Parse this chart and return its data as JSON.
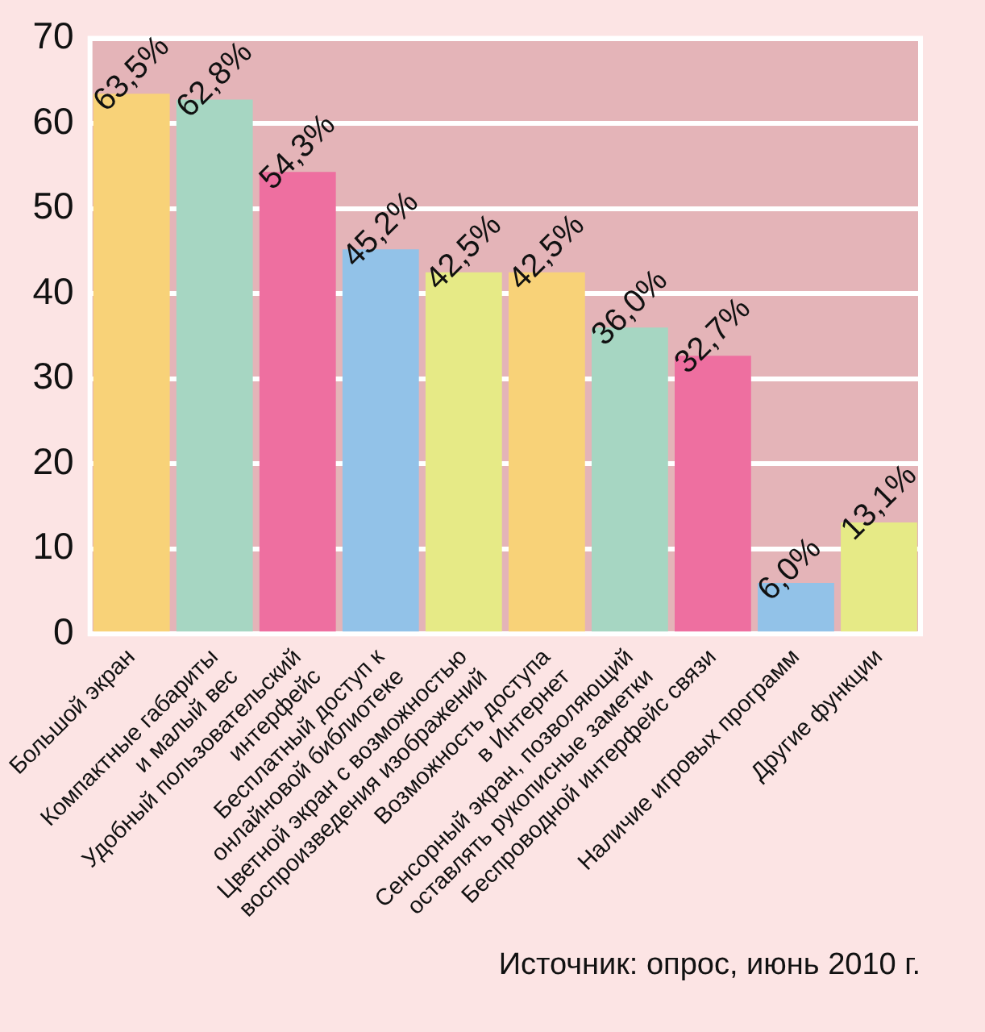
{
  "chart_data": {
    "type": "bar",
    "categories": [
      "Большой экран",
      "Компактные габариты\nи малый вес",
      "Удобный пользовательский\nинтерфейс",
      "Бесплатный доступ к\nонлайновой библиотеке",
      "Цветной экран с возможностью\nвоспроизведения изображений",
      "Возможность доступа\nв Интернет",
      "Сенсорный экран, позволяющий\nоставлять рукописные заметки",
      "Беспроводной интерфейс связи",
      "Наличие игровых программ",
      "Другие функции"
    ],
    "values": [
      63.5,
      62.8,
      54.3,
      45.2,
      42.5,
      42.5,
      36.0,
      32.7,
      6.0,
      13.1
    ],
    "colors": [
      "#f8d278",
      "#a6d6c2",
      "#ee6fa0",
      "#92c2e8",
      "#e6ea86",
      "#f8d278",
      "#a6d6c2",
      "#ee6fa0",
      "#92c2e8",
      "#e6ea86"
    ],
    "value_labels": [
      "63,5%",
      "62,8%",
      "54,3%",
      "45,2%",
      "42,5%",
      "42,5%",
      "36,0%",
      "32,7%",
      "6,0%",
      "13,1%"
    ],
    "ylim": [
      0,
      70
    ],
    "yticks": [
      0,
      10,
      20,
      30,
      40,
      50,
      60,
      70
    ],
    "grid": "y",
    "legend": false,
    "annotations": [
      "Источник: опрос, июнь 2010 г."
    ]
  }
}
